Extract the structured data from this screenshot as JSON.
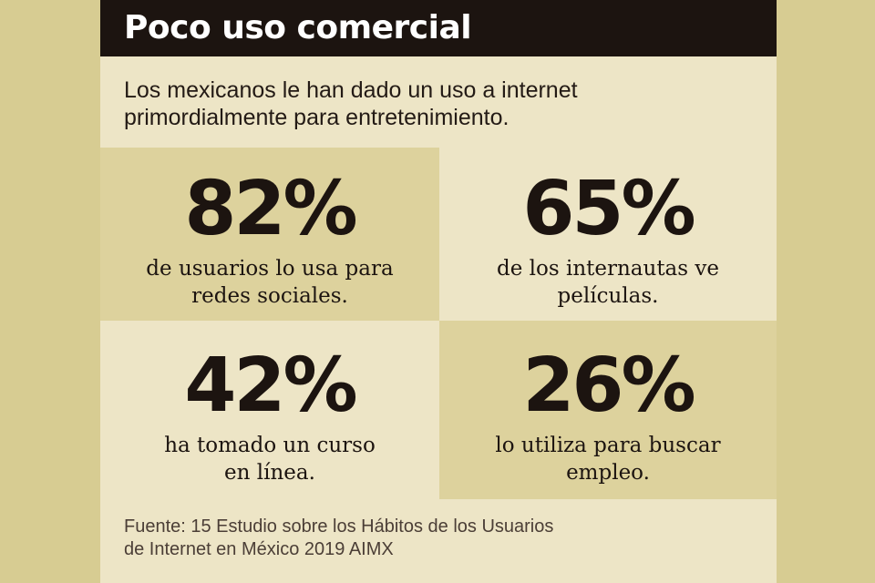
{
  "header": {
    "title": "Poco uso comercial"
  },
  "intro": {
    "line1": "Los mexicanos le han dado un uso a internet",
    "line2": "primordialmente para  entretenimiento."
  },
  "stats": [
    {
      "value": "82%",
      "line1": "de usuarios lo usa para",
      "line2": "redes sociales."
    },
    {
      "value": "65%",
      "line1": "de los internautas ve",
      "line2": "películas."
    },
    {
      "value": "42%",
      "line1": "ha tomado un curso",
      "line2": "en línea."
    },
    {
      "value": "26%",
      "line1": "lo utiliza para buscar",
      "line2": "empleo."
    }
  ],
  "source": {
    "line1": "Fuente: 15 Estudio sobre los Hábitos de los Usuarios",
    "line2": "de Internet en México 2019 AIMX"
  },
  "colors": {
    "background_side": "#d7cc92",
    "card": "#ede5c6",
    "cell_dark": "#ddd29d",
    "header": "#1c1410",
    "text": "#1c1410"
  }
}
